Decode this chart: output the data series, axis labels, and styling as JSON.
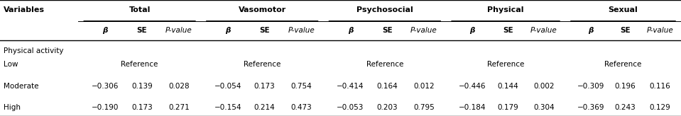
{
  "col_groups": [
    {
      "label": "Total",
      "cols": [
        "β",
        "SE",
        "P-value"
      ]
    },
    {
      "label": "Vasomotor",
      "cols": [
        "β",
        "SE",
        "P-value"
      ]
    },
    {
      "label": "Psychosocial",
      "cols": [
        "β",
        "SE",
        "P-value"
      ]
    },
    {
      "label": "Physical",
      "cols": [
        "β",
        "SE",
        "P-value"
      ]
    },
    {
      "label": "Sexual",
      "cols": [
        "β",
        "SE",
        "P-value"
      ]
    }
  ],
  "first_col_label": "Variables",
  "row_group_label": "Physical activity",
  "rows": [
    {
      "label": "Low",
      "values": [
        "Reference",
        "",
        "",
        "Reference",
        "",
        "",
        "Reference",
        "",
        "",
        "Reference",
        "",
        "",
        "Reference",
        "",
        ""
      ]
    },
    {
      "label": "Moderate",
      "values": [
        "−0.306",
        "0.139",
        "0.028",
        "−0.054",
        "0.173",
        "0.754",
        "−0.414",
        "0.164",
        "0.012",
        "−0.446",
        "0.144",
        "0.002",
        "−0.309",
        "0.196",
        "0.116"
      ]
    },
    {
      "label": "High",
      "values": [
        "−0.190",
        "0.173",
        "0.271",
        "−0.154",
        "0.214",
        "0.473",
        "−0.053",
        "0.203",
        "0.795",
        "−0.184",
        "0.179",
        "0.304",
        "−0.369",
        "0.243",
        "0.129"
      ]
    }
  ],
  "background_color": "#ffffff",
  "header_line_color": "#000000",
  "text_color": "#000000",
  "font_size": 7.5,
  "bold_headers": true
}
